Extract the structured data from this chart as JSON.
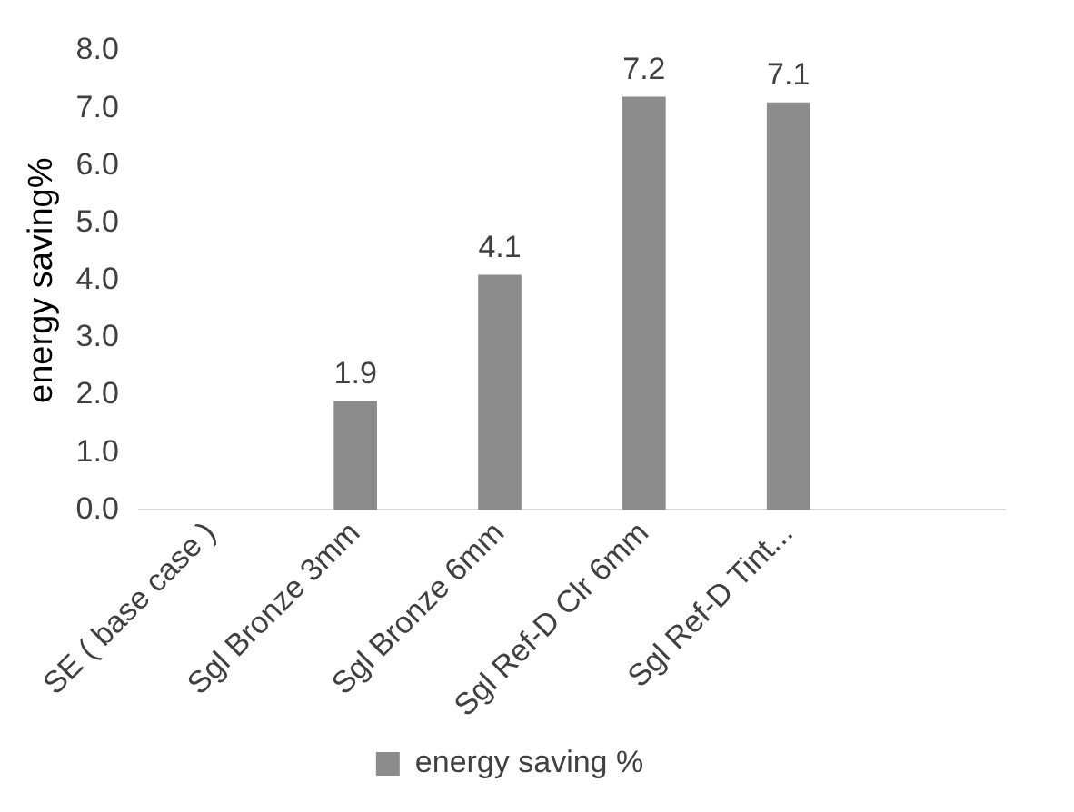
{
  "chart_data": {
    "type": "bar",
    "ylabel": "energy saving%",
    "categories": [
      "SE ( base case )",
      "Sgl Bronze 3mm",
      "Sgl Bronze 6mm",
      "Sgl Ref-D Clr 6mm",
      "Sgl Ref-D Tint...",
      null
    ],
    "series": [
      {
        "name": "energy saving %",
        "color": "#8c8c8c",
        "values": [
          null,
          1.9,
          4.1,
          7.2,
          7.1,
          null
        ]
      }
    ],
    "ylim": [
      0,
      8
    ],
    "yticks": [
      {
        "value": 0,
        "label": "0.0"
      },
      {
        "value": 1,
        "label": "1.0"
      },
      {
        "value": 2,
        "label": "2.0"
      },
      {
        "value": 3,
        "label": "3.0"
      },
      {
        "value": 4,
        "label": "4.0"
      },
      {
        "value": 5,
        "label": "5.0"
      },
      {
        "value": 6,
        "label": "6.0"
      },
      {
        "value": 7,
        "label": "7.0"
      },
      {
        "value": 8,
        "label": "8.0"
      }
    ],
    "grid": false,
    "legend": "bottom",
    "data_labels": true
  }
}
